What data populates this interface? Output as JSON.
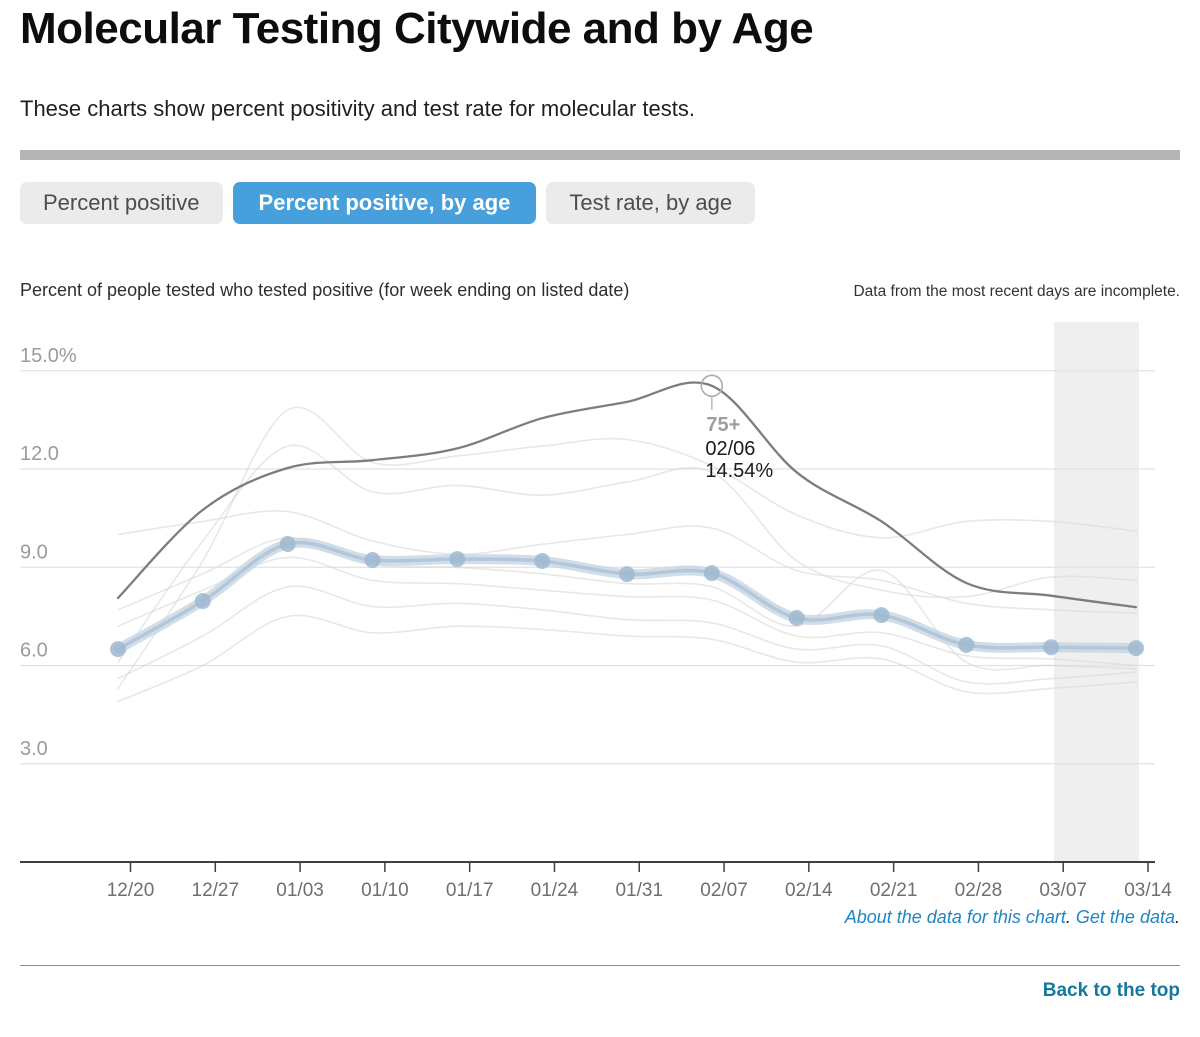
{
  "page": {
    "title": "Molecular Testing Citywide and by Age",
    "subtitle": "These charts show percent positivity and test rate for molecular tests.",
    "tabs": [
      {
        "label": "Percent positive",
        "active": false
      },
      {
        "label": "Percent positive, by age",
        "active": true
      },
      {
        "label": "Test rate, by age",
        "active": false
      }
    ],
    "chart_heading": "Percent of people tested who tested positive (for week ending on listed date)",
    "incomplete_note": "Data from the most recent days are incomplete.",
    "footer": {
      "about_link": "About the data for this chart",
      "about_period": ".",
      "get_link": "Get the data",
      "get_period": ".",
      "back_to_top": "Back to the top"
    },
    "colors": {
      "active_tab": "#47a0db",
      "inactive_tab": "#ebebeb",
      "link_blue": "#1f86c5",
      "back_to_top_blue": "#16789c",
      "highlight_line": "#7d7d7d",
      "citywide_line": "#c5d4e2",
      "citywide_dot": "#9fb9d0",
      "faint_line": "#d8d8d8",
      "incomplete_band": "#efefef",
      "gridline": "#e2e2e2",
      "axis": "#3f3f3f"
    }
  },
  "chart_data": {
    "type": "line",
    "title": "Percent of people tested who tested positive (for week ending on listed date)",
    "x_tick_labels": [
      "12/20",
      "12/27",
      "01/03",
      "01/10",
      "01/17",
      "01/24",
      "01/31",
      "02/07",
      "02/14",
      "02/21",
      "02/28",
      "03/07",
      "03/14"
    ],
    "y_tick_labels": [
      "15.0%",
      "12.0",
      "9.0",
      "6.0",
      "3.0"
    ],
    "y_ticks": [
      15,
      12,
      9,
      6,
      3
    ],
    "ylim": [
      0,
      16.8
    ],
    "grid": true,
    "legend": "none",
    "annotation_note": "Data from the most recent days are incomplete.",
    "tooltip": {
      "series": "75+",
      "date": "02/06",
      "value_label": "14.54%",
      "value": 14.54,
      "point_index": 7
    },
    "series": [
      {
        "id": "age-line-1",
        "name": "",
        "role": "faint",
        "values": [
          5.3,
          9.2,
          13.8,
          12.2,
          12.4,
          12.7,
          12.9,
          12.1,
          10.6,
          9.9,
          10.4,
          10.4,
          10.1
        ]
      },
      {
        "id": "age-line-2",
        "name": "",
        "role": "faint",
        "values": [
          6.1,
          9.8,
          12.7,
          11.3,
          11.5,
          11.2,
          11.6,
          11.9,
          9.2,
          8.3,
          8.1,
          8.7,
          8.6
        ]
      },
      {
        "id": "age-line-3",
        "name": "",
        "role": "faint",
        "values": [
          10.0,
          10.4,
          10.7,
          9.8,
          9.4,
          9.7,
          10.0,
          10.2,
          8.9,
          8.6,
          7.9,
          7.7,
          7.6
        ]
      },
      {
        "id": "age-line-4",
        "name": "",
        "role": "faint",
        "values": [
          7.7,
          8.8,
          9.9,
          9.1,
          9.0,
          8.8,
          8.5,
          8.4,
          7.2,
          8.9,
          6.1,
          6.0,
          5.9
        ]
      },
      {
        "id": "age-line-5",
        "name": "",
        "role": "faint",
        "values": [
          7.2,
          8.3,
          9.3,
          8.6,
          8.5,
          8.3,
          8.1,
          8.0,
          6.9,
          7.0,
          6.3,
          6.2,
          6.0
        ]
      },
      {
        "id": "age-line-6",
        "name": "",
        "role": "faint",
        "values": [
          5.6,
          6.9,
          8.4,
          7.8,
          7.9,
          7.7,
          7.4,
          7.3,
          6.5,
          6.6,
          5.5,
          5.6,
          5.8
        ]
      },
      {
        "id": "age-line-7",
        "name": "",
        "role": "faint",
        "values": [
          4.9,
          6.0,
          7.5,
          7.0,
          7.2,
          7.1,
          6.9,
          6.8,
          6.1,
          6.2,
          5.2,
          5.3,
          5.5
        ]
      },
      {
        "id": "citywide",
        "name": "",
        "role": "citywide",
        "values": [
          6.5,
          7.97,
          9.71,
          9.22,
          9.25,
          9.19,
          8.79,
          8.82,
          7.45,
          7.54,
          6.63,
          6.56,
          6.53
        ]
      },
      {
        "id": "age-75-plus",
        "name": "75+",
        "role": "highlight",
        "values": [
          8.06,
          10.75,
          12.03,
          12.27,
          12.63,
          13.55,
          14.05,
          14.54,
          11.9,
          10.4,
          8.52,
          8.13,
          7.78
        ]
      }
    ]
  }
}
